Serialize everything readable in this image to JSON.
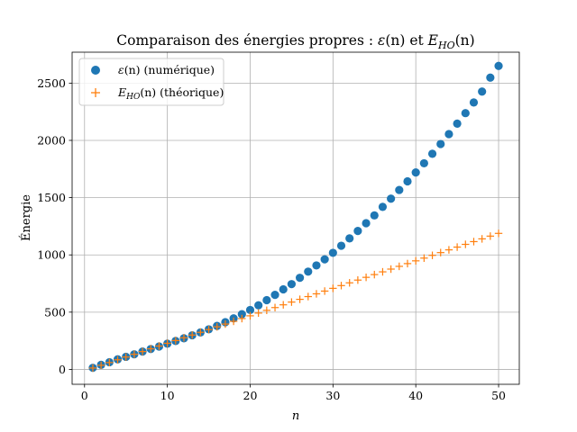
{
  "chart_data": {
    "type": "scatter",
    "title": {
      "prefix": "Comparaison des énergies propres : ",
      "eps": "ε",
      "eps_arg": "(n)",
      "joiner": " et ",
      "E": "E",
      "E_sub": "HO",
      "E_arg": "(n)"
    },
    "xlabel": "n",
    "ylabel": "Énergie",
    "xlim": [
      -1.5,
      52.5
    ],
    "ylim": [
      -130,
      2770
    ],
    "xticks": [
      0,
      10,
      20,
      30,
      40,
      50
    ],
    "yticks": [
      0,
      500,
      1000,
      1500,
      2000,
      2500
    ],
    "grid": true,
    "legend_position": "upper-left",
    "series": [
      {
        "name": "ε(n) (numérique)",
        "legend_sym": "ε",
        "legend_arg": "(n)",
        "legend_rest": " (numérique)",
        "marker": "circle",
        "color": "#1f77b4",
        "x": [
          1,
          2,
          3,
          4,
          5,
          6,
          7,
          8,
          9,
          10,
          11,
          12,
          13,
          14,
          15,
          16,
          17,
          18,
          19,
          20,
          21,
          22,
          23,
          24,
          25,
          26,
          27,
          28,
          29,
          30,
          31,
          32,
          33,
          34,
          35,
          36,
          37,
          38,
          39,
          40,
          41,
          42,
          43,
          44,
          45,
          46,
          47,
          48,
          49,
          50
        ],
        "values": [
          14,
          40,
          63,
          88,
          110,
          132,
          156,
          178,
          200,
          225,
          248,
          272,
          298,
          323,
          350,
          380,
          412,
          446,
          482,
          519,
          560,
          605,
          651,
          699,
          745,
          800,
          854,
          908,
          961,
          1018,
          1080,
          1144,
          1209,
          1277,
          1345,
          1419,
          1491,
          1567,
          1642,
          1720,
          1800,
          1883,
          1968,
          2055,
          2146,
          2238,
          2331,
          2426,
          2548,
          2650
        ]
      },
      {
        "name": "E_HO(n) (théorique)",
        "legend_sym": "E",
        "legend_sub": "HO",
        "legend_arg": "(n)",
        "legend_rest": " (théorique)",
        "marker": "plus",
        "color": "#ff7f0e",
        "x": [
          1,
          2,
          3,
          4,
          5,
          6,
          7,
          8,
          9,
          10,
          11,
          12,
          13,
          14,
          15,
          16,
          17,
          18,
          19,
          20,
          21,
          22,
          23,
          24,
          25,
          26,
          27,
          28,
          29,
          30,
          31,
          32,
          33,
          34,
          35,
          36,
          37,
          38,
          39,
          40,
          41,
          42,
          43,
          44,
          45,
          46,
          47,
          48,
          49,
          50
        ],
        "values": [
          12,
          36,
          60,
          84,
          108,
          132,
          156,
          180,
          204,
          228,
          252,
          276,
          300,
          324,
          348,
          372,
          396,
          420,
          444,
          468,
          492,
          516,
          540,
          564,
          588,
          612,
          636,
          660,
          684,
          708,
          732,
          756,
          780,
          804,
          828,
          852,
          876,
          900,
          924,
          948,
          972,
          996,
          1020,
          1044,
          1068,
          1092,
          1116,
          1140,
          1164,
          1188
        ]
      }
    ]
  }
}
